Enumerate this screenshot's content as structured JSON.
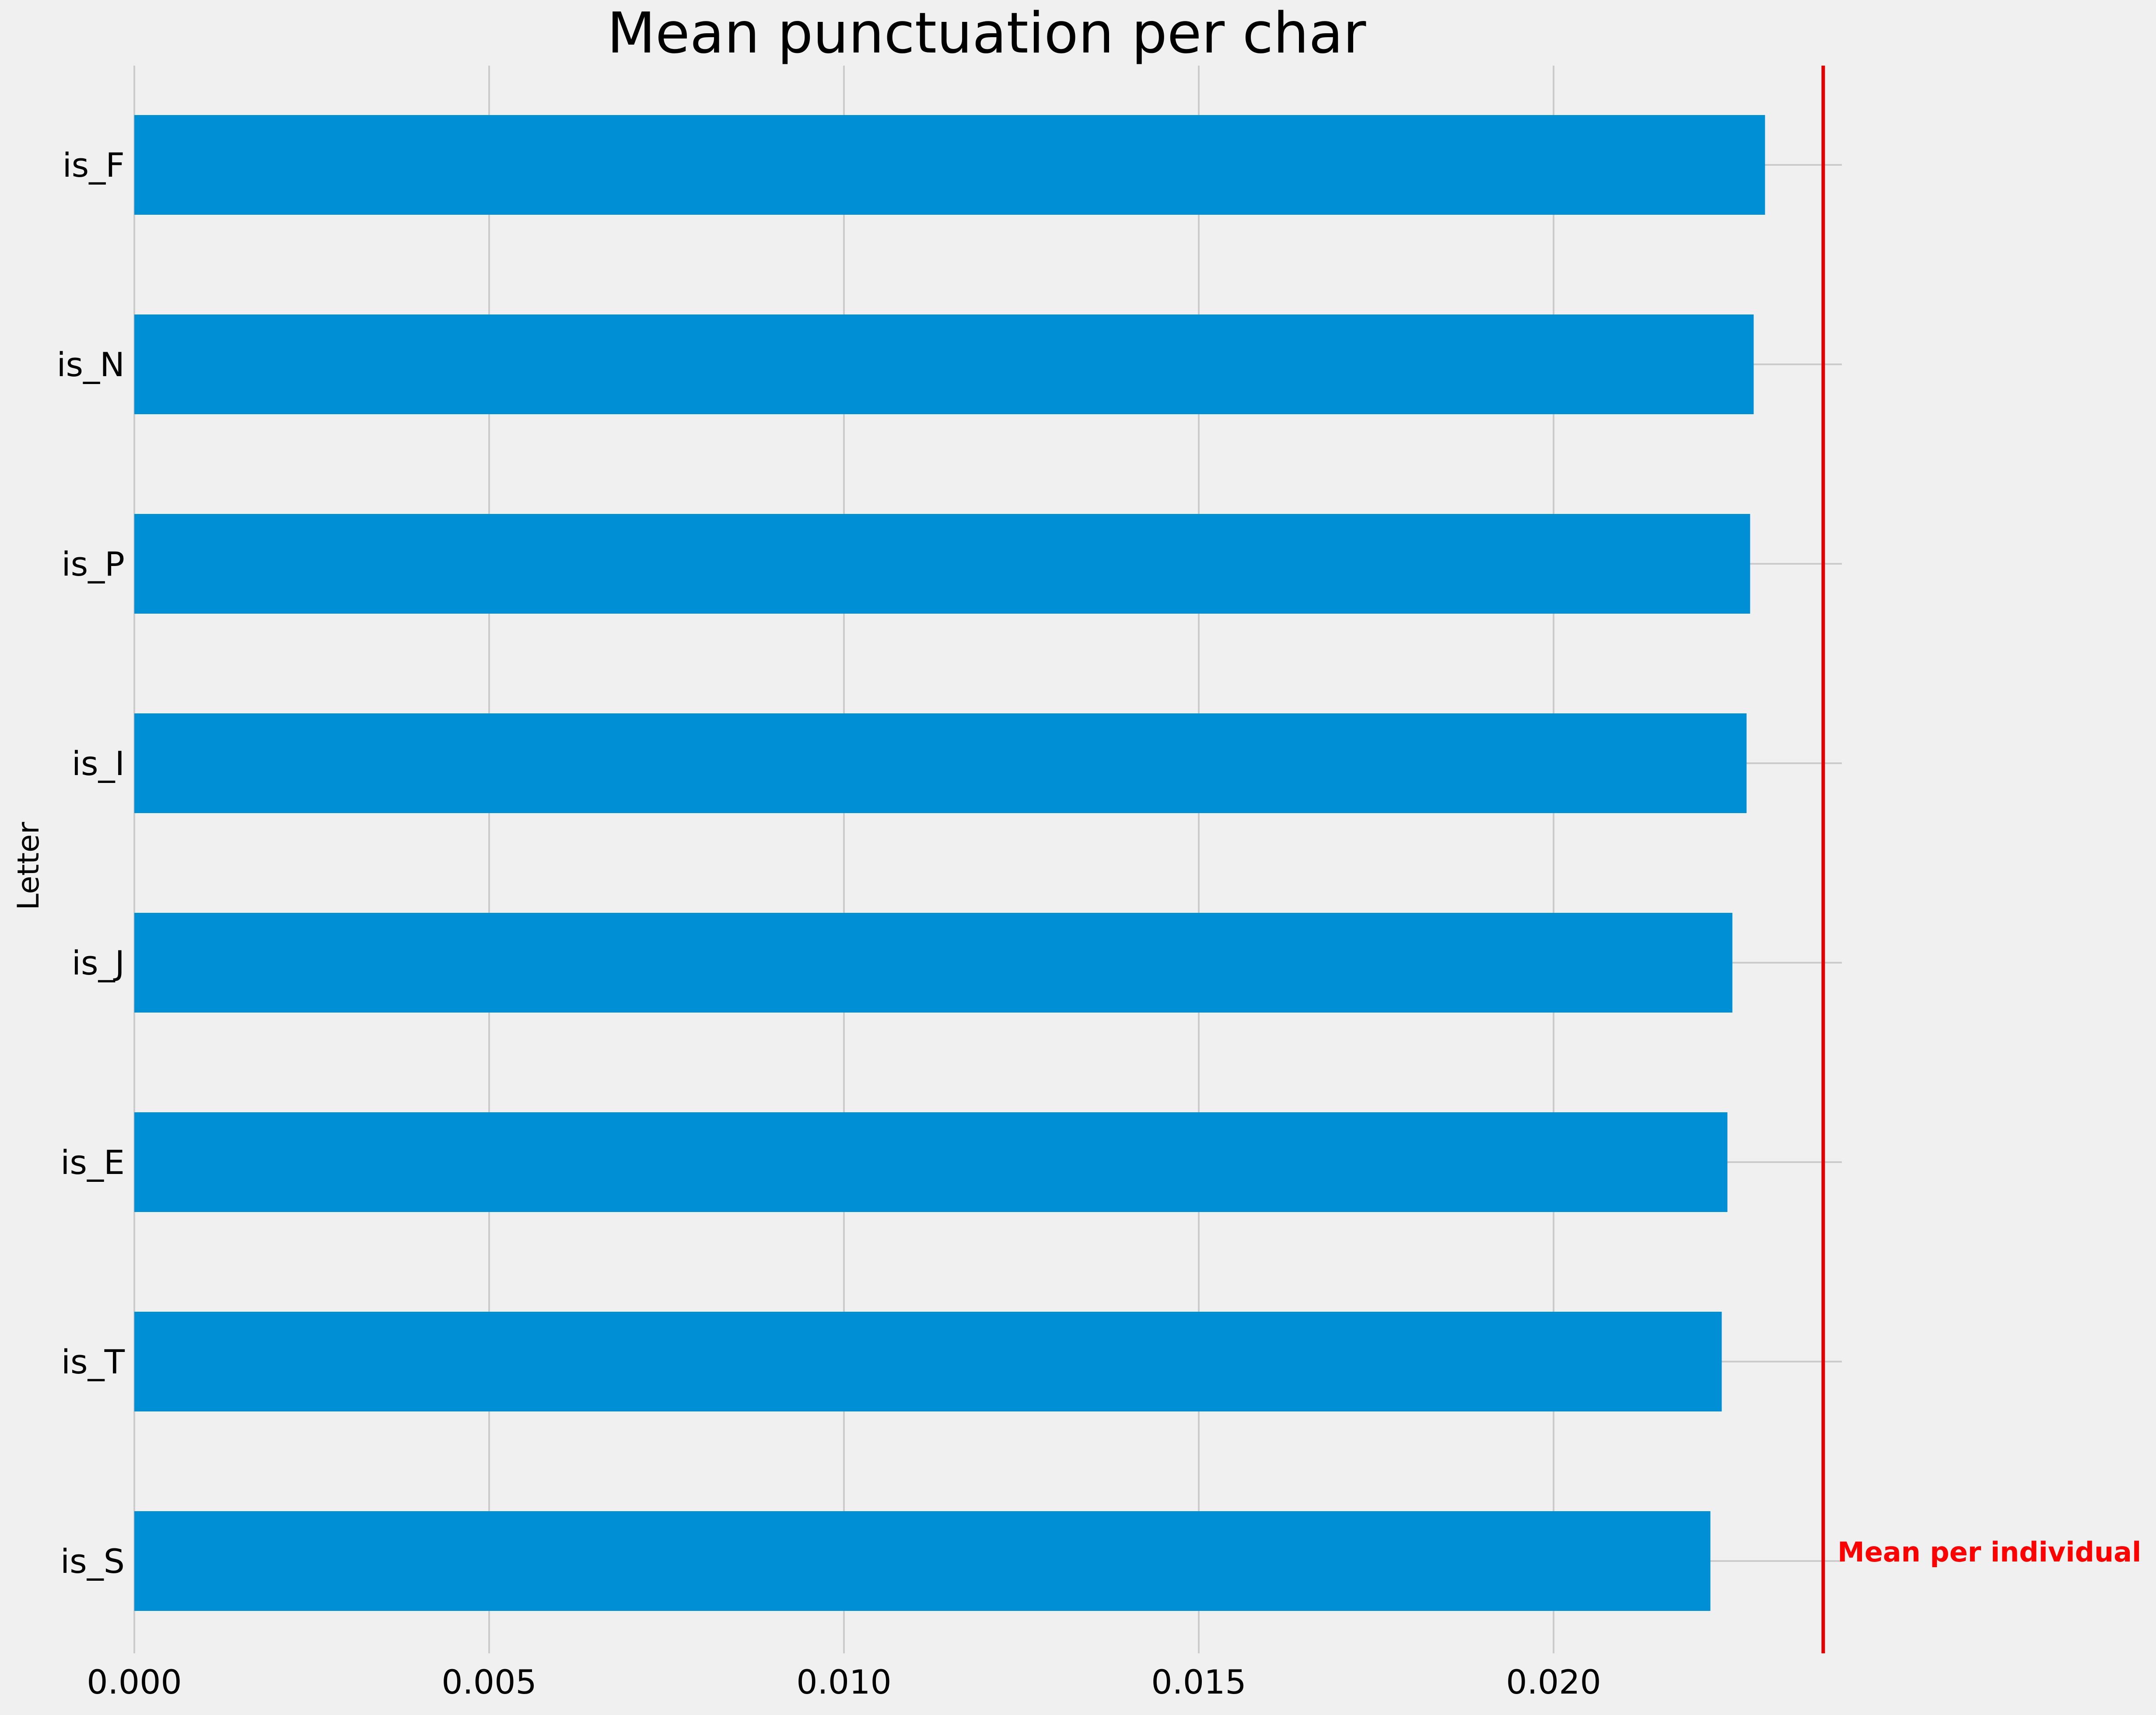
{
  "chart_data": {
    "type": "bar",
    "orientation": "horizontal",
    "title": "Mean punctuation per char",
    "xlabel": "",
    "ylabel": "Letter",
    "categories": [
      "is_F",
      "is_N",
      "is_P",
      "is_I",
      "is_J",
      "is_E",
      "is_T",
      "is_S"
    ],
    "values": [
      0.02298,
      0.02282,
      0.02277,
      0.02272,
      0.02252,
      0.02245,
      0.02237,
      0.02221
    ],
    "xlim": [
      0.0,
      0.02418
    ],
    "xticks": [
      0.0,
      0.005,
      0.01,
      0.015,
      0.02
    ],
    "xtick_labels": [
      "0.000",
      "0.005",
      "0.010",
      "0.015",
      "0.020"
    ],
    "grid": true,
    "reference_line": {
      "value": 0.0238,
      "label": "Mean per individual"
    },
    "colors": {
      "bar": "#008fd5",
      "reference": "#e00000",
      "grid": "#cbcbcb",
      "background": "#f0f0f0",
      "annotation": "#ff0000"
    }
  }
}
